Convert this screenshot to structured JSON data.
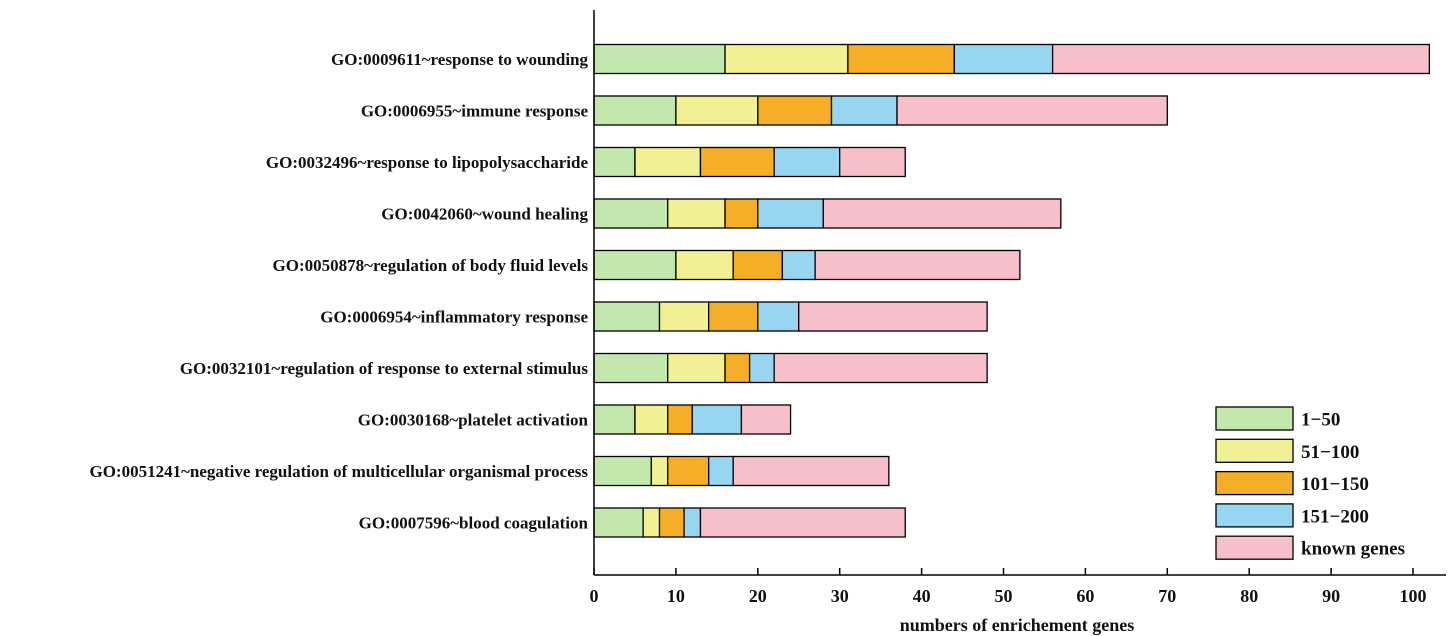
{
  "chart_data": {
    "type": "bar",
    "orientation": "horizontal",
    "stacked": true,
    "title": "",
    "xlabel": "numbers of enrichement genes",
    "ylabel": "",
    "xlim": [
      0,
      104
    ],
    "xticks": [
      0,
      10,
      20,
      30,
      40,
      50,
      60,
      70,
      80,
      90,
      100
    ],
    "grid": false,
    "legend_position": "bottom-right",
    "categories": [
      "GO:0009611~response to wounding",
      "GO:0006955~immune response",
      "GO:0032496~response to lipopolysaccharide",
      "GO:0042060~wound healing",
      "GO:0050878~regulation of body fluid levels",
      "GO:0006954~inflammatory response",
      "GO:0032101~regulation of response to external stimulus",
      "GO:0030168~platelet activation",
      "GO:0051241~negative regulation of multicellular organismal process",
      "GO:0007596~blood coagulation"
    ],
    "series": [
      {
        "name": "1−50",
        "color": "#c2e8ae",
        "values": [
          16,
          10,
          5,
          9,
          10,
          8,
          9,
          5,
          7,
          6
        ]
      },
      {
        "name": "51−100",
        "color": "#f2f095",
        "values": [
          15,
          10,
          8,
          7,
          7,
          6,
          7,
          4,
          2,
          2
        ]
      },
      {
        "name": "101−150",
        "color": "#f4ae27",
        "values": [
          13,
          9,
          9,
          4,
          6,
          6,
          3,
          3,
          5,
          3
        ]
      },
      {
        "name": "151−200",
        "color": "#98d5f1",
        "values": [
          12,
          8,
          8,
          8,
          4,
          5,
          3,
          6,
          3,
          2
        ]
      },
      {
        "name": "known genes",
        "color": "#f7bfc9",
        "values": [
          46,
          33,
          8,
          29,
          25,
          23,
          26,
          6,
          19,
          25
        ]
      }
    ]
  }
}
